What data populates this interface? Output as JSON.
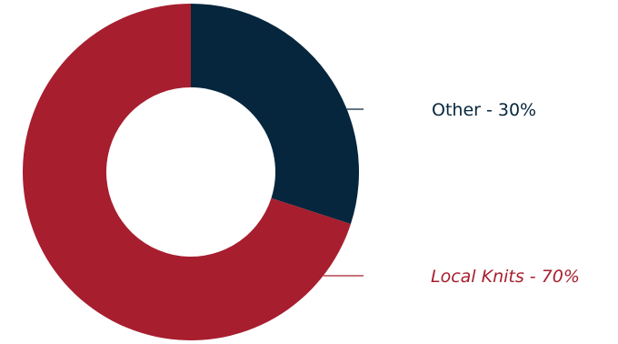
{
  "chart_data": {
    "type": "pie",
    "donut": true,
    "categories": [
      "Other",
      "Local Knits"
    ],
    "values": [
      30,
      70
    ],
    "unit": "%",
    "colors": [
      "#06263d",
      "#a71e2f"
    ],
    "labels": [
      {
        "text": "Other - 30%",
        "color": "#06263d",
        "italic": false
      },
      {
        "text": "Local Knits - 70%",
        "color": "#a71e2f",
        "italic": true
      }
    ],
    "legend": "right",
    "start": "top",
    "direction": "clockwise"
  }
}
